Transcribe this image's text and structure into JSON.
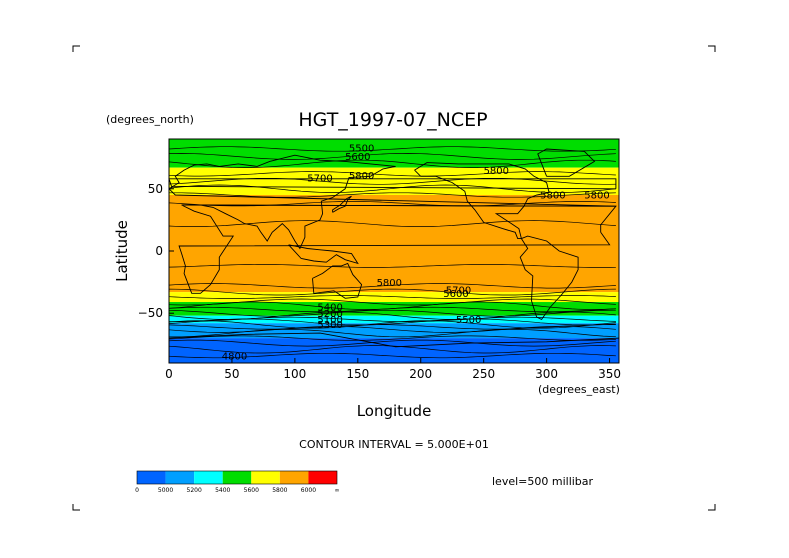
{
  "chart_data": {
    "type": "heatmap",
    "title": "HGT_1997-07_NCEP",
    "xlabel": "Longitude",
    "ylabel": "Latitude",
    "x_units": "(degrees_east)",
    "y_units": "(degrees_north)",
    "xlim": [
      0,
      357.5
    ],
    "ylim": [
      -90,
      90
    ],
    "x_ticks": [
      "0",
      "50",
      "100",
      "150",
      "200",
      "250",
      "300",
      "350"
    ],
    "y_ticks": [
      "50",
      "0",
      "-50"
    ],
    "contour_interval_text": "CONTOUR INTERVAL = 5.000E+01",
    "level_text": "level=500 millibar",
    "contour_labels": [
      "5500",
      "5600",
      "5800",
      "5800",
      "5800",
      "5800",
      "5700",
      "5800",
      "5700",
      "5600",
      "5500",
      "5400",
      "5200",
      "5100",
      "5300",
      "4800"
    ],
    "colorbar": {
      "labels": [
        "0",
        "5000",
        "5200",
        "5400",
        "5600",
        "5800",
        "6000",
        "∞"
      ],
      "colors": [
        "#0064ff",
        "#009fff",
        "#00ffff",
        "#00dd00",
        "#ffff00",
        "#ffa500",
        "#ff0000"
      ]
    },
    "latitude_bands": [
      {
        "from": 90,
        "to": 67,
        "color": "#00dd00",
        "range": "5400-5600"
      },
      {
        "from": 67,
        "to": 45,
        "color": "#ffff00",
        "range": "5600-5800"
      },
      {
        "from": 45,
        "to": -33,
        "color": "#ffa500",
        "range": "5800-6000"
      },
      {
        "from": -33,
        "to": -41,
        "color": "#ffff00",
        "range": "5600-5800"
      },
      {
        "from": -41,
        "to": -52,
        "color": "#00dd00",
        "range": "5400-5600"
      },
      {
        "from": -52,
        "to": -58,
        "color": "#00ffff",
        "range": "5200-5400"
      },
      {
        "from": -58,
        "to": -70,
        "color": "#009fff",
        "range": "5000-5200"
      },
      {
        "from": -70,
        "to": -90,
        "color": "#0064ff",
        "range": "0-5000"
      }
    ]
  }
}
